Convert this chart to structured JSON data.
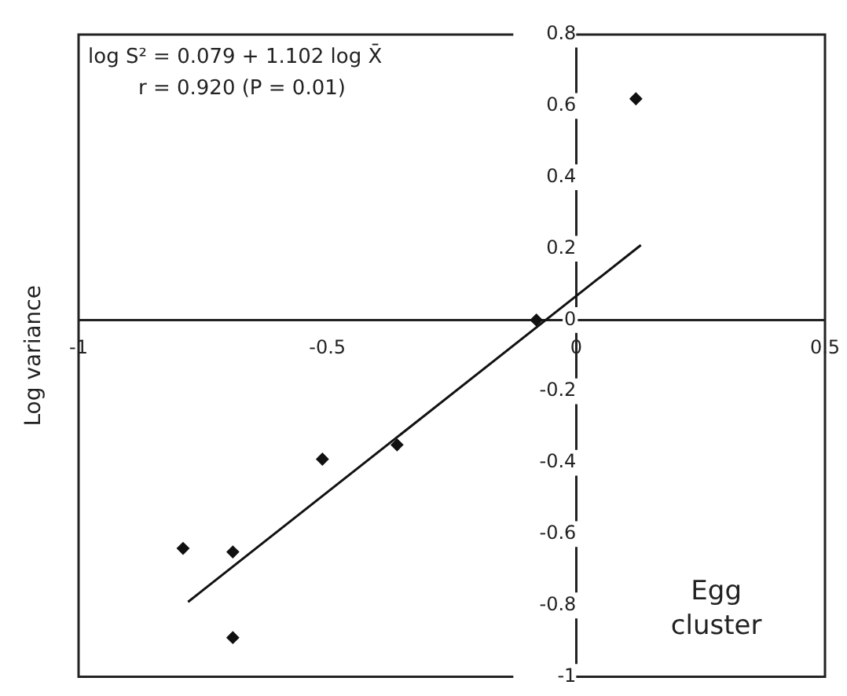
{
  "chart_data": {
    "type": "scatter",
    "ylabel": "Log variance",
    "annotations": [
      "log S² = 0.079 + 1.102 log X̄",
      "r = 0.920 (P = 0.01)",
      "Egg cluster"
    ],
    "series": [
      {
        "type": "scatter",
        "color": "#111111",
        "x": [
          0.12,
          -0.08,
          -0.36,
          -0.51,
          -0.79,
          -0.69,
          -0.69
        ],
        "values": [
          0.62,
          0.0,
          -0.35,
          -0.39,
          -0.64,
          -0.65,
          -0.89
        ]
      },
      {
        "type": "line",
        "color": "#111111",
        "x": [
          -0.78,
          0.13
        ],
        "values": [
          -0.79,
          0.21
        ],
        "marker": "none"
      }
    ],
    "xlim": [
      -1,
      0.5
    ],
    "xticks": [
      -1,
      -0.5,
      0,
      0.5
    ],
    "ylim": [
      -1,
      0.8
    ],
    "yticks": [
      -1,
      -0.8,
      -0.6,
      -0.4,
      -0.2,
      0,
      0.2,
      0.4,
      0.6,
      0.8
    ],
    "grid": false,
    "legend": false,
    "marker": "diamond"
  }
}
